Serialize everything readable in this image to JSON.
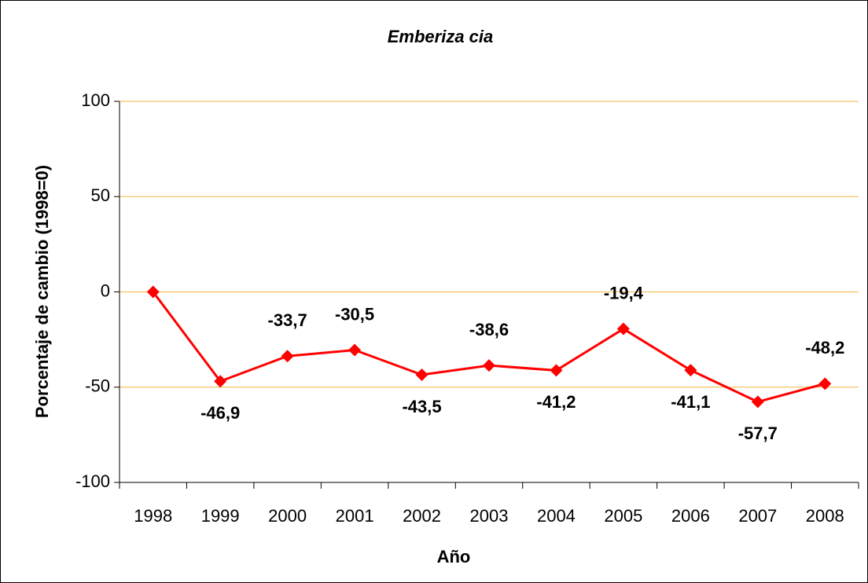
{
  "chart_data": {
    "type": "line",
    "title": "Emberiza cia",
    "x_label": "Año",
    "y_label": "Porcentaje de cambio (1998=0)",
    "categories": [
      "1998",
      "1999",
      "2000",
      "2001",
      "2002",
      "2003",
      "2004",
      "2005",
      "2006",
      "2007",
      "2008"
    ],
    "series": [
      {
        "name": "Emberiza cia",
        "color": "#ff0000",
        "values": [
          0,
          -46.9,
          -33.7,
          -30.5,
          -43.5,
          -38.6,
          -41.2,
          -19.4,
          -41.1,
          -57.7,
          -48.2
        ],
        "value_labels": [
          null,
          "-46,9",
          "-33,7",
          "-30,5",
          "-43,5",
          "-38,6",
          "-41,2",
          "-19,4",
          "-41,1",
          "-57,7",
          "-48,2"
        ]
      }
    ],
    "ylim": [
      -100,
      100
    ],
    "yticks": [
      -100,
      -50,
      0,
      50,
      100
    ],
    "grid": true,
    "grid_color": "#f4b63f"
  }
}
